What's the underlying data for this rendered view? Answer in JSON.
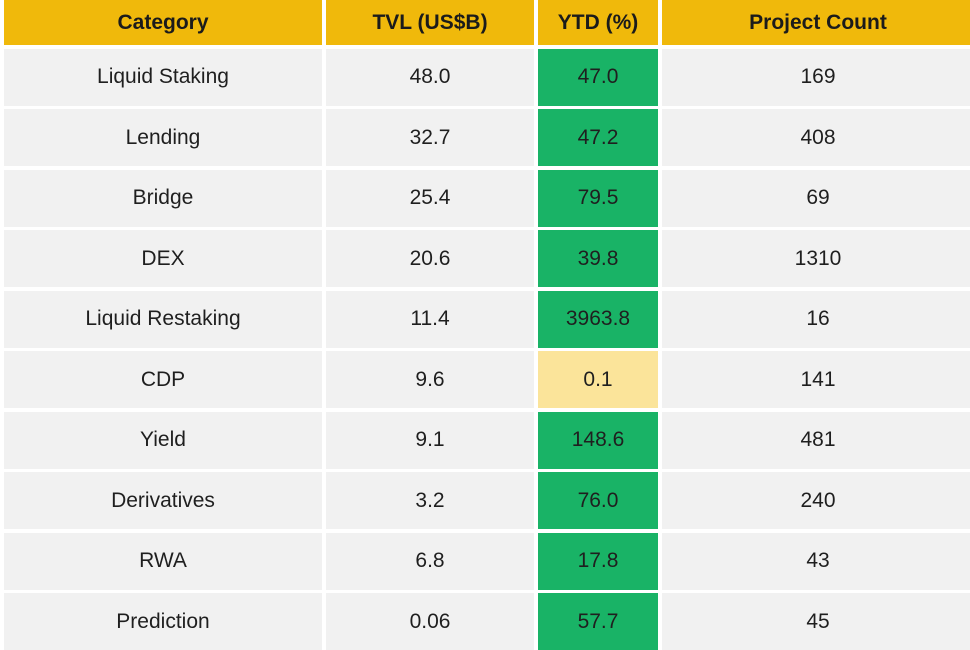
{
  "chart_data": {
    "type": "table",
    "columns": [
      "Category",
      "TVL (US$B)",
      "YTD (%)",
      "Project Count"
    ],
    "rows": [
      {
        "category": "Liquid Staking",
        "tvl": "48.0",
        "ytd": "47.0",
        "projects": "169"
      },
      {
        "category": "Lending",
        "tvl": "32.7",
        "ytd": "47.2",
        "projects": "408"
      },
      {
        "category": "Bridge",
        "tvl": "25.4",
        "ytd": "79.5",
        "projects": "69"
      },
      {
        "category": "DEX",
        "tvl": "20.6",
        "ytd": "39.8",
        "projects": "1310"
      },
      {
        "category": "Liquid Restaking",
        "tvl": "11.4",
        "ytd": "3963.8",
        "projects": "16"
      },
      {
        "category": "CDP",
        "tvl": "9.6",
        "ytd": "0.1",
        "projects": "141"
      },
      {
        "category": "Yield",
        "tvl": "9.1",
        "ytd": "148.6",
        "projects": "481"
      },
      {
        "category": "Derivatives",
        "tvl": "3.2",
        "ytd": "76.0",
        "projects": "240"
      },
      {
        "category": "RWA",
        "tvl": "6.8",
        "ytd": "17.8",
        "projects": "43"
      },
      {
        "category": "Prediction",
        "tvl": "0.06",
        "ytd": "57.7",
        "projects": "45"
      }
    ],
    "colors": {
      "header": "#f0b90b",
      "row_bg": "#f1f1f1",
      "ytd_high": "#19b366",
      "ytd_low": "#fbe49a"
    }
  }
}
